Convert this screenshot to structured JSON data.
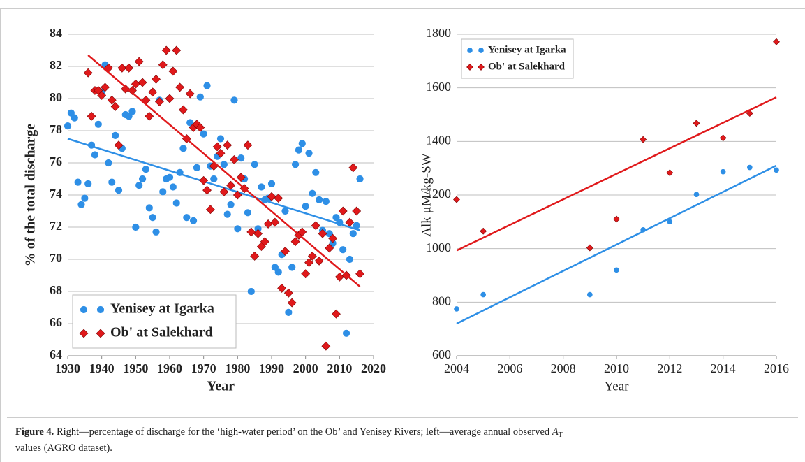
{
  "chart_data": [
    {
      "type": "scatter",
      "xlabel": "Year",
      "ylabel": "% of the total discharge",
      "xlim": [
        1930,
        2020
      ],
      "ylim": [
        64,
        84
      ],
      "xticks": [
        1930,
        1940,
        1950,
        1960,
        1970,
        1980,
        1990,
        2000,
        2010,
        2020
      ],
      "yticks": [
        64,
        66,
        68,
        70,
        72,
        74,
        76,
        78,
        80,
        82,
        84
      ],
      "grid": true,
      "legend": "lower left",
      "series": [
        {
          "name": "Yenisey at Igarka",
          "color": "#2e8fe6",
          "marker": "circle",
          "x": [
            1930,
            1931,
            1932,
            1933,
            1934,
            1935,
            1936,
            1937,
            1938,
            1939,
            1940,
            1941,
            1942,
            1943,
            1944,
            1945,
            1946,
            1947,
            1948,
            1949,
            1950,
            1951,
            1952,
            1953,
            1954,
            1955,
            1956,
            1957,
            1958,
            1959,
            1960,
            1961,
            1962,
            1963,
            1964,
            1965,
            1966,
            1967,
            1968,
            1969,
            1970,
            1971,
            1972,
            1973,
            1974,
            1975,
            1976,
            1977,
            1978,
            1979,
            1980,
            1981,
            1982,
            1983,
            1984,
            1985,
            1986,
            1987,
            1988,
            1989,
            1990,
            1991,
            1992,
            1993,
            1994,
            1995,
            1996,
            1997,
            1998,
            1999,
            2000,
            2001,
            2002,
            2003,
            2004,
            2005,
            2006,
            2007,
            2008,
            2009,
            2010,
            2011,
            2012,
            2013,
            2014,
            2015,
            2016
          ],
          "values": [
            78.3,
            79.1,
            78.8,
            74.8,
            73.4,
            73.8,
            74.7,
            77.1,
            76.5,
            78.4,
            80.4,
            82.1,
            76.0,
            74.8,
            77.7,
            74.3,
            76.9,
            79.0,
            78.9,
            79.2,
            72.0,
            74.6,
            75.0,
            75.6,
            73.2,
            72.6,
            71.7,
            79.9,
            74.2,
            75.0,
            75.1,
            74.5,
            73.5,
            75.4,
            76.9,
            72.6,
            78.5,
            72.4,
            75.7,
            80.1,
            77.8,
            80.8,
            75.8,
            75.0,
            76.4,
            77.5,
            75.9,
            72.8,
            73.4,
            79.9,
            71.9,
            76.3,
            75.0,
            72.9,
            68.0,
            75.9,
            71.9,
            74.5,
            73.7,
            73.8,
            74.7,
            69.5,
            69.2,
            70.3,
            73.0,
            66.7,
            69.5,
            75.9,
            76.8,
            77.2,
            73.3,
            76.6,
            74.1,
            75.4,
            73.7,
            71.8,
            73.6,
            71.6,
            71.0,
            72.6,
            72.3,
            70.6,
            65.4,
            70.0,
            71.6,
            72.1,
            75.0
          ],
          "trend": {
            "x": [
              1930,
              2016
            ],
            "values": [
              77.5,
              71.8
            ]
          }
        },
        {
          "name": "Ob' at Salekhard",
          "color": "#e0191b",
          "marker": "diamond",
          "x": [
            1936,
            1937,
            1938,
            1939,
            1940,
            1941,
            1942,
            1943,
            1944,
            1945,
            1946,
            1947,
            1948,
            1949,
            1950,
            1951,
            1952,
            1953,
            1954,
            1955,
            1956,
            1957,
            1958,
            1959,
            1960,
            1961,
            1962,
            1963,
            1964,
            1965,
            1966,
            1967,
            1968,
            1969,
            1970,
            1971,
            1972,
            1973,
            1974,
            1975,
            1976,
            1977,
            1978,
            1979,
            1980,
            1981,
            1982,
            1983,
            1984,
            1985,
            1986,
            1987,
            1988,
            1989,
            1990,
            1991,
            1992,
            1993,
            1994,
            1995,
            1996,
            1997,
            1998,
            1999,
            2000,
            2001,
            2002,
            2003,
            2004,
            2005,
            2006,
            2007,
            2008,
            2009,
            2010,
            2011,
            2012,
            2013,
            2014,
            2015,
            2016
          ],
          "values": [
            81.6,
            78.9,
            80.5,
            80.5,
            80.2,
            80.7,
            81.9,
            79.9,
            79.5,
            77.1,
            81.9,
            80.6,
            81.9,
            80.5,
            80.9,
            82.3,
            81.0,
            79.9,
            78.9,
            80.4,
            81.2,
            79.8,
            82.1,
            83.0,
            80.0,
            81.7,
            83.0,
            80.7,
            79.3,
            77.5,
            80.3,
            78.2,
            78.4,
            78.2,
            74.9,
            74.3,
            73.1,
            75.8,
            77.0,
            76.6,
            74.2,
            77.1,
            74.6,
            76.2,
            74.0,
            75.1,
            74.4,
            77.1,
            71.7,
            70.2,
            71.6,
            70.8,
            71.1,
            72.2,
            73.9,
            72.3,
            73.8,
            68.2,
            70.5,
            67.9,
            67.3,
            71.1,
            71.5,
            71.7,
            69.1,
            69.8,
            70.2,
            72.1,
            69.9,
            71.6,
            64.6,
            70.7,
            71.3,
            66.6,
            68.9,
            73.0,
            69.0,
            72.3,
            75.7,
            73.0,
            69.1
          ],
          "trend": {
            "x": [
              1936,
              2016
            ],
            "values": [
              82.7,
              68.3
            ]
          }
        }
      ]
    },
    {
      "type": "scatter",
      "xlabel": "Year",
      "ylabel": "Alk μM/kg-SW",
      "xlim": [
        2004,
        2016
      ],
      "ylim": [
        600,
        1800
      ],
      "xticks": [
        2004,
        2006,
        2008,
        2010,
        2012,
        2014,
        2016
      ],
      "yticks": [
        600,
        800,
        1000,
        1200,
        1400,
        1600,
        1800
      ],
      "grid": true,
      "legend": "upper left",
      "series": [
        {
          "name": "Yenisey at Igarka",
          "color": "#2e8fe6",
          "marker": "circle",
          "x": [
            2004,
            2005,
            2009,
            2010,
            2011,
            2012,
            2013,
            2014,
            2015,
            2016
          ],
          "values": [
            775,
            828,
            828,
            920,
            1070,
            1100,
            1202,
            1287,
            1303,
            1293
          ],
          "trend": {
            "x": [
              2004,
              2016
            ],
            "values": [
              720,
              1310
            ]
          }
        },
        {
          "name": "Ob' at Salekhard",
          "color": "#e0191b",
          "marker": "diamond",
          "x": [
            2004,
            2005,
            2009,
            2010,
            2011,
            2012,
            2013,
            2014,
            2015,
            2016
          ],
          "values": [
            1183,
            1065,
            1003,
            1110,
            1407,
            1283,
            1468,
            1413,
            1505,
            1772
          ],
          "trend": {
            "x": [
              2004,
              2016
            ],
            "values": [
              993,
              1565
            ]
          }
        }
      ]
    }
  ],
  "caption": {
    "label": "Figure 4.",
    "text_1": " Right—percentage of discharge for the ‘high-water period’ on the Ob’ and Yenisey Rivers; left—average annual observed ",
    "symbol": "A",
    "subscript": "T",
    "text_2": "values (AGRO dataset)."
  }
}
